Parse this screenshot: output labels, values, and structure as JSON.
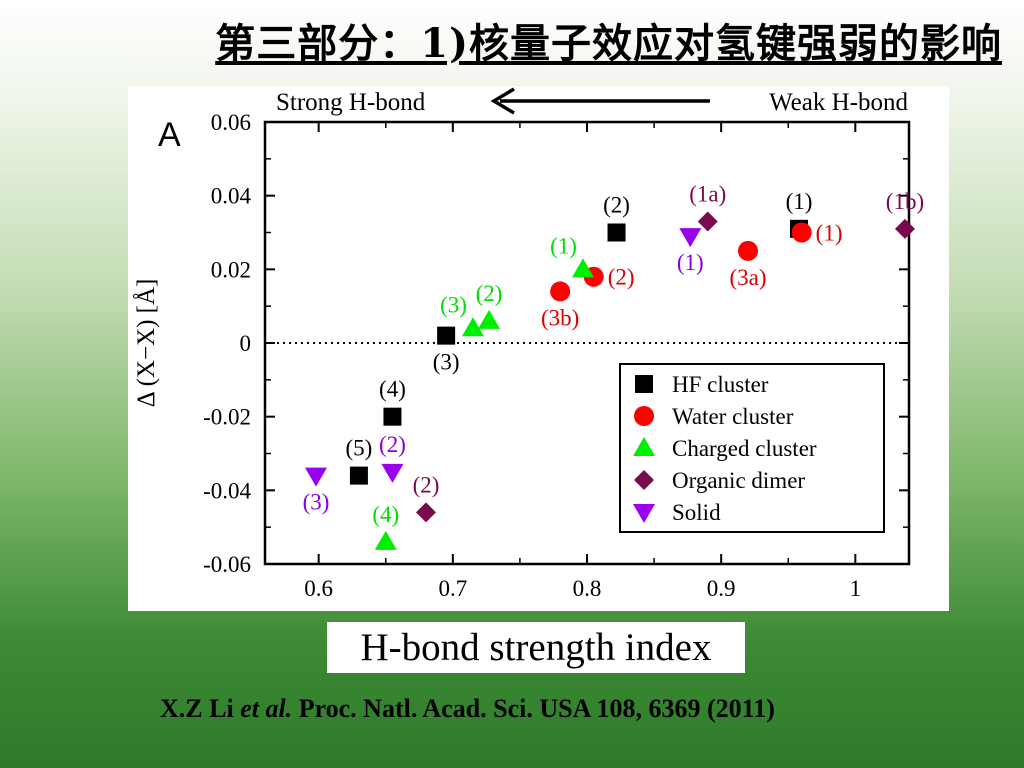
{
  "slide": {
    "title": "第三部分：1)核量子效应对氢键强弱的影响"
  },
  "chart_data": {
    "type": "scatter",
    "panel_label": "A",
    "top_annotation": {
      "left": "Strong H-bond",
      "right": "Weak H-bond"
    },
    "xlabel": "H-bond strength index",
    "ylabel": "Δ (X−X) [Å]",
    "xlim": [
      0.56,
      1.04
    ],
    "ylim": [
      -0.06,
      0.06
    ],
    "xticks": [
      0.6,
      0.7,
      0.8,
      0.9,
      1.0
    ],
    "xtick_labels": [
      "0.6",
      "0.7",
      "0.8",
      "0.9",
      "1"
    ],
    "yticks": [
      0.06,
      0.04,
      0.02,
      0,
      -0.02,
      -0.04,
      -0.06
    ],
    "ytick_labels": [
      "0.06",
      "0.04",
      "0.02",
      "0",
      "-0.02",
      "-0.04",
      "-0.06"
    ],
    "zero_line": true,
    "legend_position": "bottom-right",
    "series": [
      {
        "name": "HF cluster",
        "marker": "square",
        "color": "#000000",
        "label_color": "#000000",
        "points": [
          {
            "x": 0.958,
            "y": 0.031,
            "label": "(1)",
            "label_pos": "top"
          },
          {
            "x": 0.822,
            "y": 0.03,
            "label": "(2)",
            "label_pos": "top"
          },
          {
            "x": 0.695,
            "y": 0.002,
            "label": "(3)",
            "label_pos": "bottom"
          },
          {
            "x": 0.655,
            "y": -0.02,
            "label": "(4)",
            "label_pos": "top"
          },
          {
            "x": 0.63,
            "y": -0.036,
            "label": "(5)",
            "label_pos": "top"
          }
        ]
      },
      {
        "name": "Water cluster",
        "marker": "circle",
        "color": "#ff0000",
        "label_color": "#dd0000",
        "points": [
          {
            "x": 0.96,
            "y": 0.03,
            "label": "(1)",
            "label_pos": "right"
          },
          {
            "x": 0.805,
            "y": 0.018,
            "label": "(2)",
            "label_pos": "right"
          },
          {
            "x": 0.92,
            "y": 0.025,
            "label": "(3a)",
            "label_pos": "bottom"
          },
          {
            "x": 0.78,
            "y": 0.014,
            "label": "(3b)",
            "label_pos": "bottom"
          }
        ]
      },
      {
        "name": "Charged cluster",
        "marker": "triangle-up",
        "color": "#00ee00",
        "label_color": "#00dd00",
        "points": [
          {
            "x": 0.797,
            "y": 0.02,
            "label": "(1)",
            "label_pos": "topleft"
          },
          {
            "x": 0.727,
            "y": 0.006,
            "label": "(2)",
            "label_pos": "top"
          },
          {
            "x": 0.715,
            "y": 0.004,
            "label": "(3)",
            "label_pos": "topleft"
          },
          {
            "x": 0.65,
            "y": -0.054,
            "label": "(4)",
            "label_pos": "top"
          }
        ]
      },
      {
        "name": "Organic dimer",
        "marker": "diamond",
        "color": "#7a0a4e",
        "label_color": "#7a0a4e",
        "points": [
          {
            "x": 0.89,
            "y": 0.033,
            "label": "(1a)",
            "label_pos": "top"
          },
          {
            "x": 1.037,
            "y": 0.031,
            "label": "(1b)",
            "label_pos": "top"
          },
          {
            "x": 0.68,
            "y": -0.046,
            "label": "(2)",
            "label_pos": "top"
          }
        ]
      },
      {
        "name": "Solid",
        "marker": "triangle-down",
        "color": "#9a00ee",
        "label_color": "#8a00dd",
        "points": [
          {
            "x": 0.877,
            "y": 0.029,
            "label": "(1)",
            "label_pos": "bottom"
          },
          {
            "x": 0.655,
            "y": -0.035,
            "label": "(2)",
            "label_pos": "top"
          },
          {
            "x": 0.598,
            "y": -0.036,
            "label": "(3)",
            "label_pos": "bottom"
          }
        ]
      }
    ]
  },
  "citation": {
    "authors": "X.Z Li",
    "etal": "et al.",
    "journal": "Proc. Natl. Acad. Sci. USA 108, 6369 (2011)"
  }
}
